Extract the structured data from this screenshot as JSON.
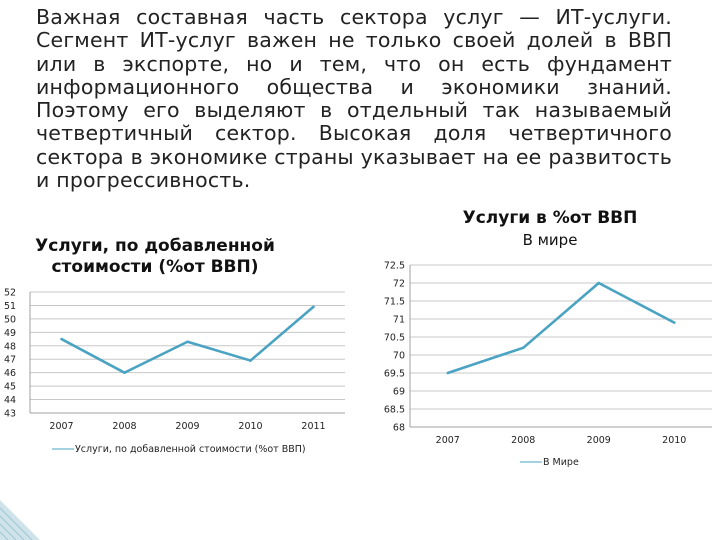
{
  "slide": {
    "bullet_symbol": "",
    "paragraph": "Важная составная часть сектора услуг — ИТ-услуги. Сегмент ИТ-услуг важен не только своей долей в ВВП или в экспорте, но и тем, что он есть фундамент информационного общества и экономики знаний. Поэтому его выделяют в отдельный так называемый четвертичный сектор. Высокая доля четвертичного сектора в экономике страны указывает на ее развитость и прогрессивность."
  },
  "colors": {
    "line": "#4aa3c2",
    "grid": "#c8c8c8",
    "axis": "#a0a0a0"
  },
  "chart_data": [
    {
      "type": "line",
      "title": "Услуги, по добавленной стоимости (%от ВВП)",
      "categories": [
        "2007",
        "2008",
        "2009",
        "2010",
        "2011"
      ],
      "series": [
        {
          "name": "Услуги, по добавленной стоимости (%от ВВП)",
          "values": [
            48.5,
            46.0,
            48.3,
            46.9,
            50.9
          ]
        }
      ],
      "yticks": [
        "52",
        "51",
        "50",
        "49",
        "48",
        "47",
        "46",
        "45",
        "44",
        "43"
      ],
      "ylim": [
        43,
        52
      ],
      "grid": true,
      "legend_position": "bottom"
    },
    {
      "type": "line",
      "title": "Услуги в %от ВВП",
      "subtitle": "В мире",
      "categories": [
        "2007",
        "2008",
        "2009",
        "2010"
      ],
      "series": [
        {
          "name": "В Мире",
          "values": [
            69.5,
            70.2,
            72.0,
            70.9
          ]
        }
      ],
      "yticks": [
        "72.5",
        "72",
        "71.5",
        "71",
        "70.5",
        "70",
        "69.5",
        "69",
        "68.5",
        "68"
      ],
      "ylim": [
        68,
        72.5
      ],
      "grid": true,
      "legend_position": "bottom"
    }
  ]
}
